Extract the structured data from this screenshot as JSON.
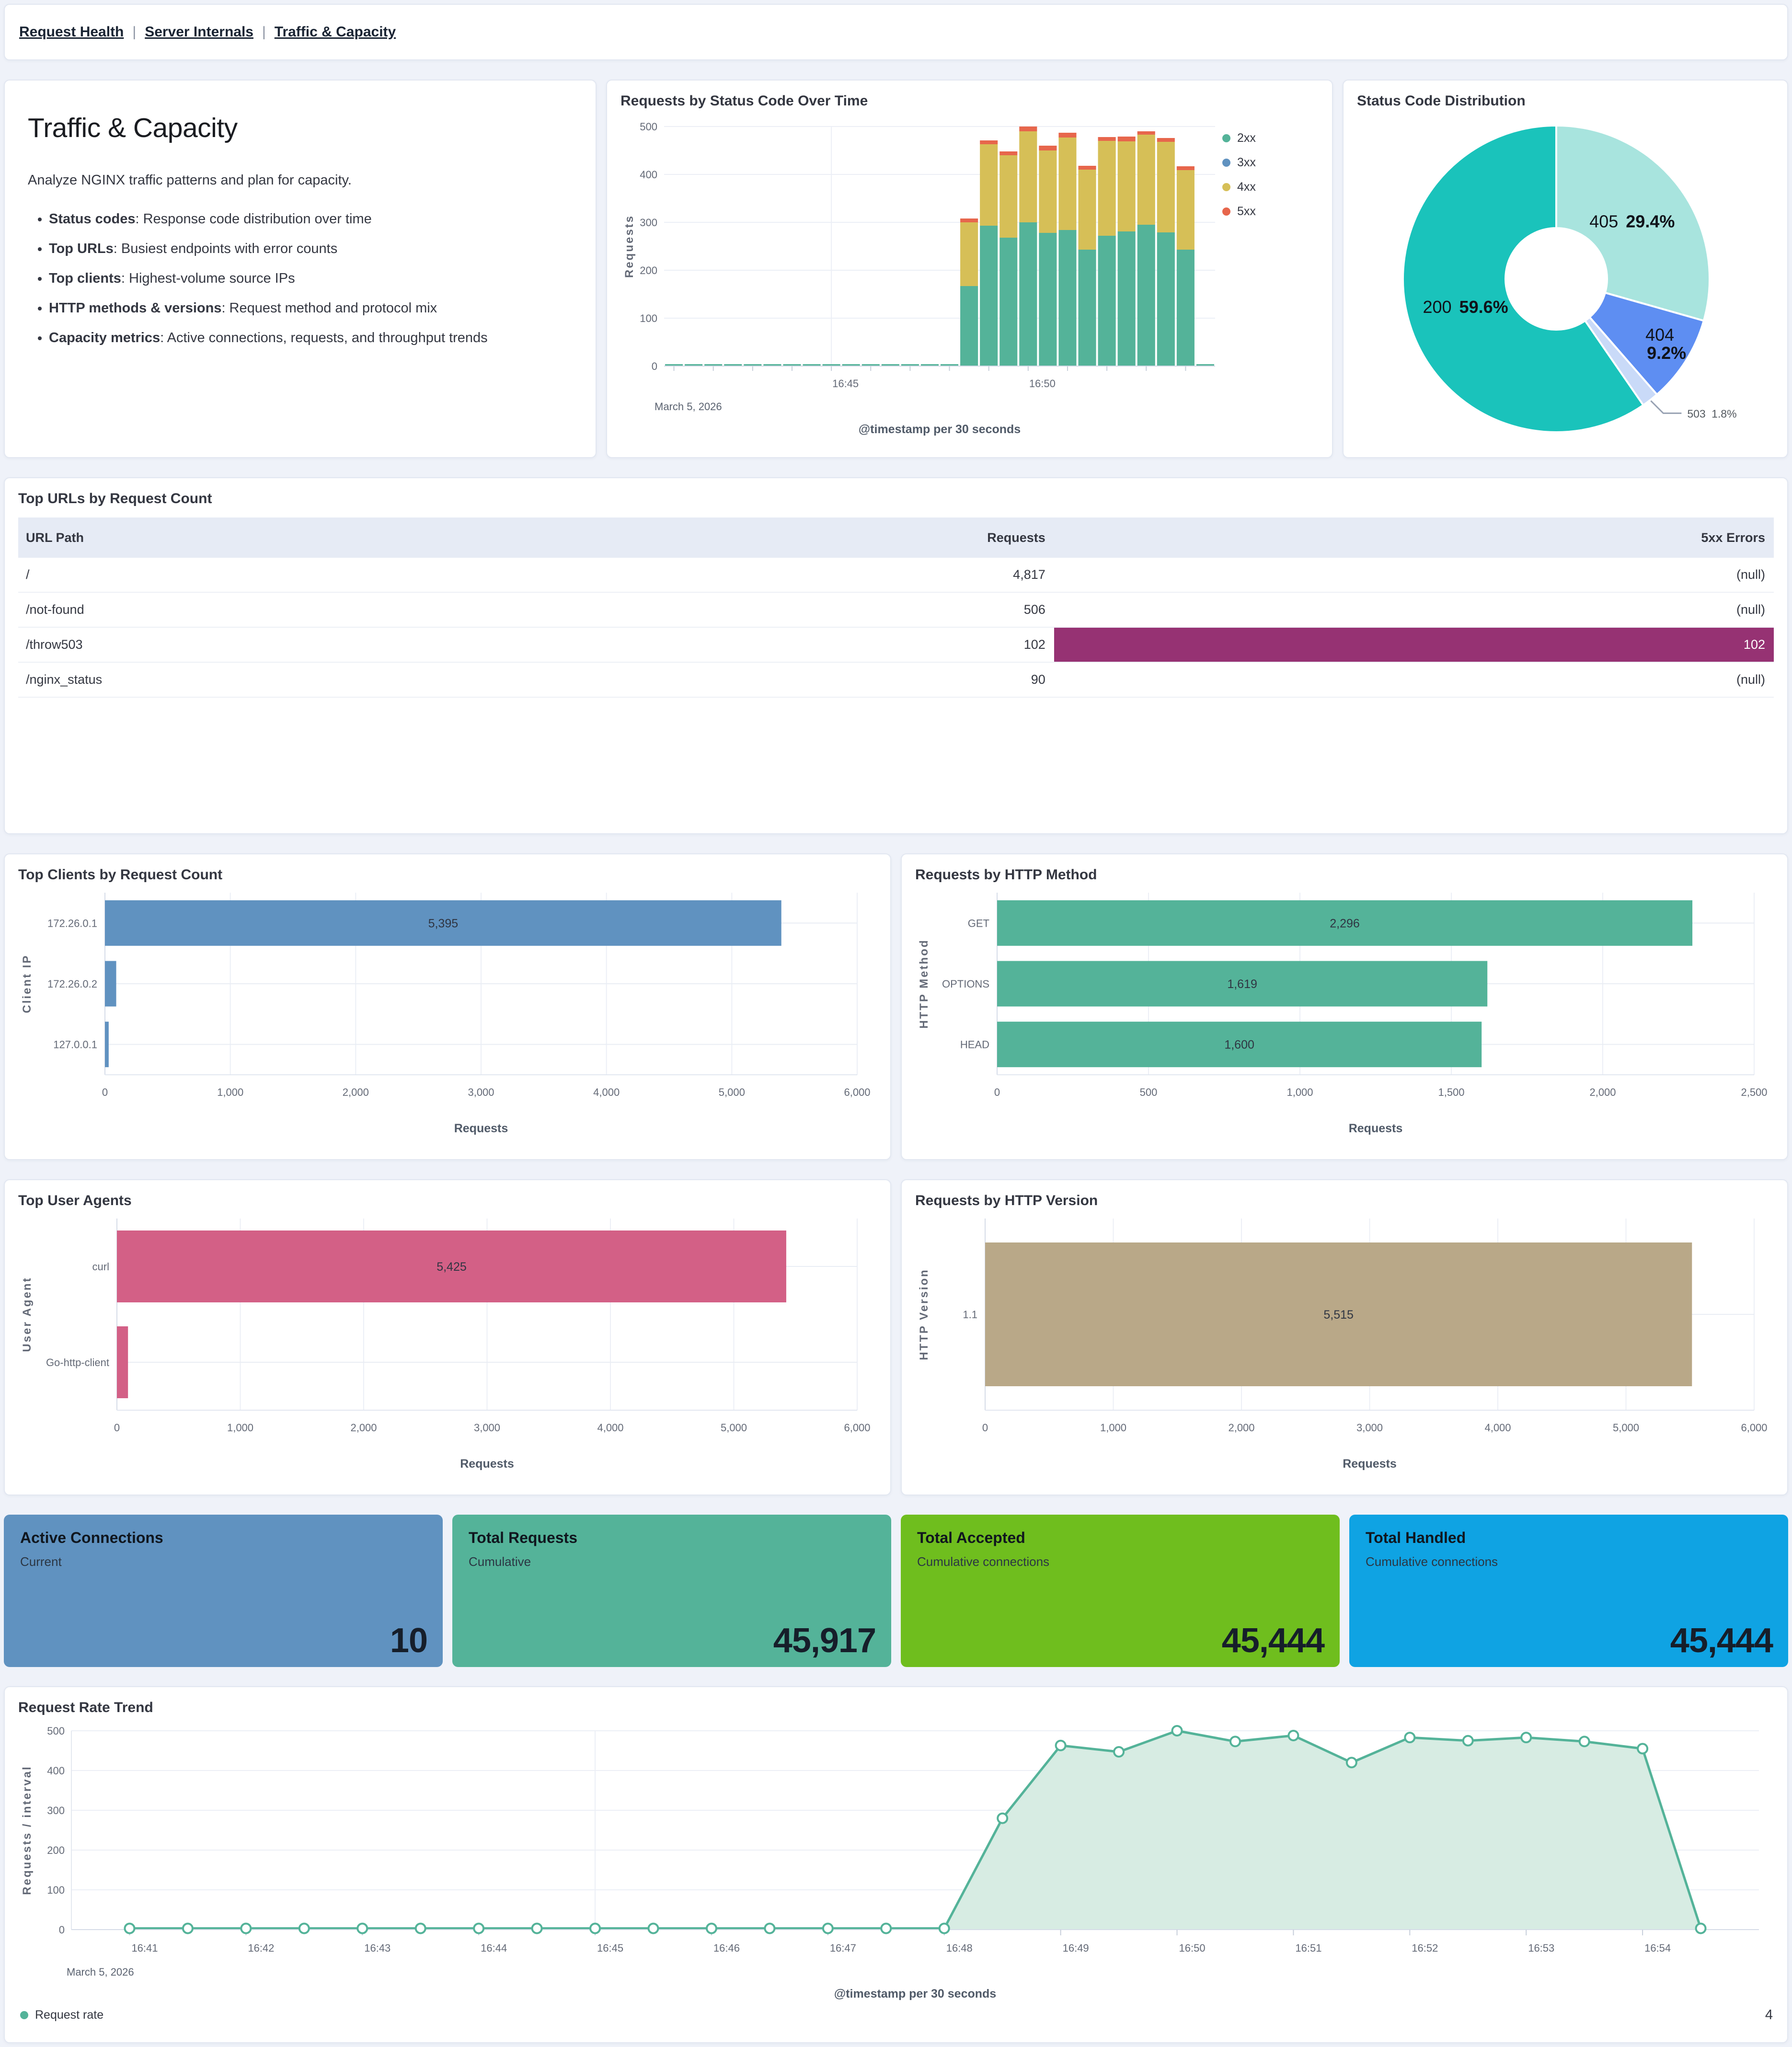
{
  "nav": {
    "links": [
      "Request Health",
      "Server Internals",
      "Traffic & Capacity"
    ],
    "separator": "|"
  },
  "intro": {
    "title": "Traffic & Capacity",
    "description": "Analyze NGINX traffic patterns and plan for capacity.",
    "bullets": [
      [
        "Status codes",
        ": Response code distribution over time"
      ],
      [
        "Top URLs",
        ": Busiest endpoints with error counts"
      ],
      [
        "Top clients",
        ": Highest-volume source IPs"
      ],
      [
        "HTTP methods & versions",
        ": Request method and protocol mix"
      ],
      [
        "Capacity metrics",
        ": Active connections, requests, and throughput trends"
      ]
    ]
  },
  "table": {
    "title": "Top URLs by Request Count",
    "columns": [
      "URL Path",
      "Requests",
      "5xx Errors"
    ],
    "rows": [
      {
        "path": "/",
        "requests": "4,817",
        "errors": "(null)",
        "highlight": false
      },
      {
        "path": "/not-found",
        "requests": "506",
        "errors": "(null)",
        "highlight": false
      },
      {
        "path": "/throw503",
        "requests": "102",
        "errors": "102",
        "highlight": true
      },
      {
        "path": "/nginx_status",
        "requests": "90",
        "errors": "(null)",
        "highlight": false
      }
    ],
    "highlight_color": "#963273"
  },
  "metrics": [
    {
      "title": "Active Connections",
      "subtitle": "Current",
      "value": "10",
      "color": "#6092C0"
    },
    {
      "title": "Total Requests",
      "subtitle": "Cumulative",
      "value": "45,917",
      "color": "#54B399"
    },
    {
      "title": "Total Accepted",
      "subtitle": "Cumulative connections",
      "value": "45,444",
      "color": "#6FBE1E"
    },
    {
      "title": "Total Handled",
      "subtitle": "Cumulative connections",
      "value": "45,444",
      "color": "#0FA3E3"
    }
  ],
  "chart_data": {
    "status_over_time": {
      "type": "bar",
      "title": "Requests by Status Code Over Time",
      "xlabel": "@timestamp per 30 seconds",
      "ylabel": "Requests",
      "date_label": "March 5, 2026",
      "ylim": [
        0,
        500
      ],
      "yticks": [
        0,
        100,
        200,
        300,
        400,
        500
      ],
      "categories": [
        "16:41:00",
        "16:41:30",
        "16:42:00",
        "16:42:30",
        "16:43:00",
        "16:43:30",
        "16:44:00",
        "16:44:30",
        "16:45:00",
        "16:45:30",
        "16:46:00",
        "16:46:30",
        "16:47:00",
        "16:47:30",
        "16:48:00",
        "16:48:30",
        "16:49:00",
        "16:49:30",
        "16:50:00",
        "16:50:30",
        "16:51:00",
        "16:51:30",
        "16:52:00",
        "16:52:30",
        "16:53:00",
        "16:53:30",
        "16:54:00",
        "16:54:30"
      ],
      "x_tick_labels": [
        {
          "index": 8,
          "label": "16:45"
        },
        {
          "index": 18,
          "label": "16:50"
        }
      ],
      "series": [
        {
          "name": "2xx",
          "color": "#54B399",
          "values": [
            4,
            4,
            4,
            4,
            4,
            4,
            4,
            4,
            4,
            4,
            4,
            4,
            4,
            4,
            4,
            167,
            293,
            268,
            300,
            278,
            284,
            243,
            272,
            281,
            295,
            279,
            243,
            4
          ]
        },
        {
          "name": "3xx",
          "color": "#6092C0",
          "values": [
            0,
            0,
            0,
            0,
            0,
            0,
            0,
            0,
            0,
            0,
            0,
            0,
            0,
            0,
            0,
            0,
            0,
            0,
            0,
            0,
            0,
            0,
            0,
            0,
            0,
            0,
            0,
            0
          ]
        },
        {
          "name": "4xx",
          "color": "#D6BF57",
          "values": [
            0,
            0,
            0,
            0,
            0,
            0,
            0,
            0,
            0,
            0,
            0,
            0,
            0,
            0,
            0,
            133,
            170,
            172,
            190,
            172,
            193,
            167,
            198,
            188,
            188,
            189,
            166,
            0
          ]
        },
        {
          "name": "5xx",
          "color": "#E7664C",
          "values": [
            0,
            0,
            0,
            0,
            0,
            0,
            0,
            0,
            0,
            0,
            0,
            0,
            0,
            0,
            0,
            8,
            8,
            8,
            10,
            10,
            10,
            8,
            8,
            10,
            7,
            8,
            8,
            0
          ]
        }
      ]
    },
    "status_distribution": {
      "type": "pie",
      "title": "Status Code Distribution",
      "slices": [
        {
          "label": "405",
          "pct": 29.4,
          "pct_label": "29.4%",
          "color": "#A8E4DE"
        },
        {
          "label": "404",
          "pct": 9.2,
          "pct_label": "9.2%",
          "color": "#5E8EF2"
        },
        {
          "label": "503",
          "pct": 1.8,
          "pct_label": "1.8%",
          "color": "#C9DAF8",
          "callout": true
        },
        {
          "label": "200",
          "pct": 59.6,
          "pct_label": "59.6%",
          "color": "#1AC3BB"
        }
      ]
    },
    "top_clients": {
      "type": "bar",
      "title": "Top Clients by Request Count",
      "xlabel": "Requests",
      "ylabel": "Client IP",
      "xlim": [
        0,
        6000
      ],
      "xticks": [
        0,
        1000,
        2000,
        3000,
        4000,
        5000,
        6000
      ],
      "categories": [
        "172.26.0.1",
        "172.26.0.2",
        "127.0.0.1"
      ],
      "values": [
        5395,
        90,
        30
      ],
      "value_labels": [
        "5,395",
        "",
        ""
      ],
      "color": "#6092C0"
    },
    "http_method": {
      "type": "bar",
      "title": "Requests by HTTP Method",
      "xlabel": "Requests",
      "ylabel": "HTTP Method",
      "xlim": [
        0,
        2500
      ],
      "xticks": [
        0,
        500,
        1000,
        1500,
        2000,
        2500
      ],
      "categories": [
        "GET",
        "OPTIONS",
        "HEAD"
      ],
      "values": [
        2296,
        1619,
        1600
      ],
      "value_labels": [
        "2,296",
        "1,619",
        "1,600"
      ],
      "color": "#54B399"
    },
    "user_agents": {
      "type": "bar",
      "title": "Top User Agents",
      "xlabel": "Requests",
      "ylabel": "User Agent",
      "xlim": [
        0,
        6000
      ],
      "xticks": [
        0,
        1000,
        2000,
        3000,
        4000,
        5000,
        6000
      ],
      "categories": [
        "curl",
        "Go-http-client"
      ],
      "values": [
        5425,
        90
      ],
      "value_labels": [
        "5,425",
        ""
      ],
      "color": "#D36086"
    },
    "http_version": {
      "type": "bar",
      "title": "Requests by HTTP Version",
      "xlabel": "Requests",
      "ylabel": "HTTP Version",
      "xlim": [
        0,
        6000
      ],
      "xticks": [
        0,
        1000,
        2000,
        3000,
        4000,
        5000,
        6000
      ],
      "categories": [
        "1.1"
      ],
      "values": [
        5515
      ],
      "value_labels": [
        "5,515"
      ],
      "color": "#B9A888"
    },
    "request_rate": {
      "type": "area",
      "title": "Request Rate Trend",
      "xlabel": "@timestamp per 30 seconds",
      "ylabel": "Requests / interval",
      "date_label": "March 5, 2026",
      "legend": "Request rate",
      "corner_value": "4",
      "color": "#54B399",
      "fill": "#D7ECE3",
      "ylim": [
        0,
        500
      ],
      "yticks": [
        0,
        100,
        200,
        300,
        400,
        500
      ],
      "categories": [
        "16:41:00",
        "16:41:30",
        "16:42:00",
        "16:42:30",
        "16:43:00",
        "16:43:30",
        "16:44:00",
        "16:44:30",
        "16:45:00",
        "16:45:30",
        "16:46:00",
        "16:46:30",
        "16:47:00",
        "16:47:30",
        "16:48:00",
        "16:48:30",
        "16:49:00",
        "16:49:30",
        "16:50:00",
        "16:50:30",
        "16:51:00",
        "16:51:30",
        "16:52:00",
        "16:52:30",
        "16:53:00",
        "16:53:30",
        "16:54:00",
        "16:54:30"
      ],
      "values": [
        3,
        3,
        3,
        3,
        3,
        3,
        3,
        3,
        3,
        3,
        3,
        3,
        3,
        3,
        3,
        280,
        463,
        447,
        500,
        473,
        488,
        420,
        483,
        475,
        483,
        473,
        455,
        3
      ],
      "x_tick_labels": [
        {
          "index": 0,
          "label": "16:41"
        },
        {
          "index": 2,
          "label": "16:42"
        },
        {
          "index": 4,
          "label": "16:43"
        },
        {
          "index": 6,
          "label": "16:44"
        },
        {
          "index": 8,
          "label": "16:45"
        },
        {
          "index": 10,
          "label": "16:46"
        },
        {
          "index": 12,
          "label": "16:47"
        },
        {
          "index": 14,
          "label": "16:48"
        },
        {
          "index": 16,
          "label": "16:49"
        },
        {
          "index": 18,
          "label": "16:50"
        },
        {
          "index": 20,
          "label": "16:51"
        },
        {
          "index": 22,
          "label": "16:52"
        },
        {
          "index": 24,
          "label": "16:53"
        },
        {
          "index": 26,
          "label": "16:54"
        }
      ],
      "x_gridlines": [
        8,
        18
      ]
    }
  }
}
